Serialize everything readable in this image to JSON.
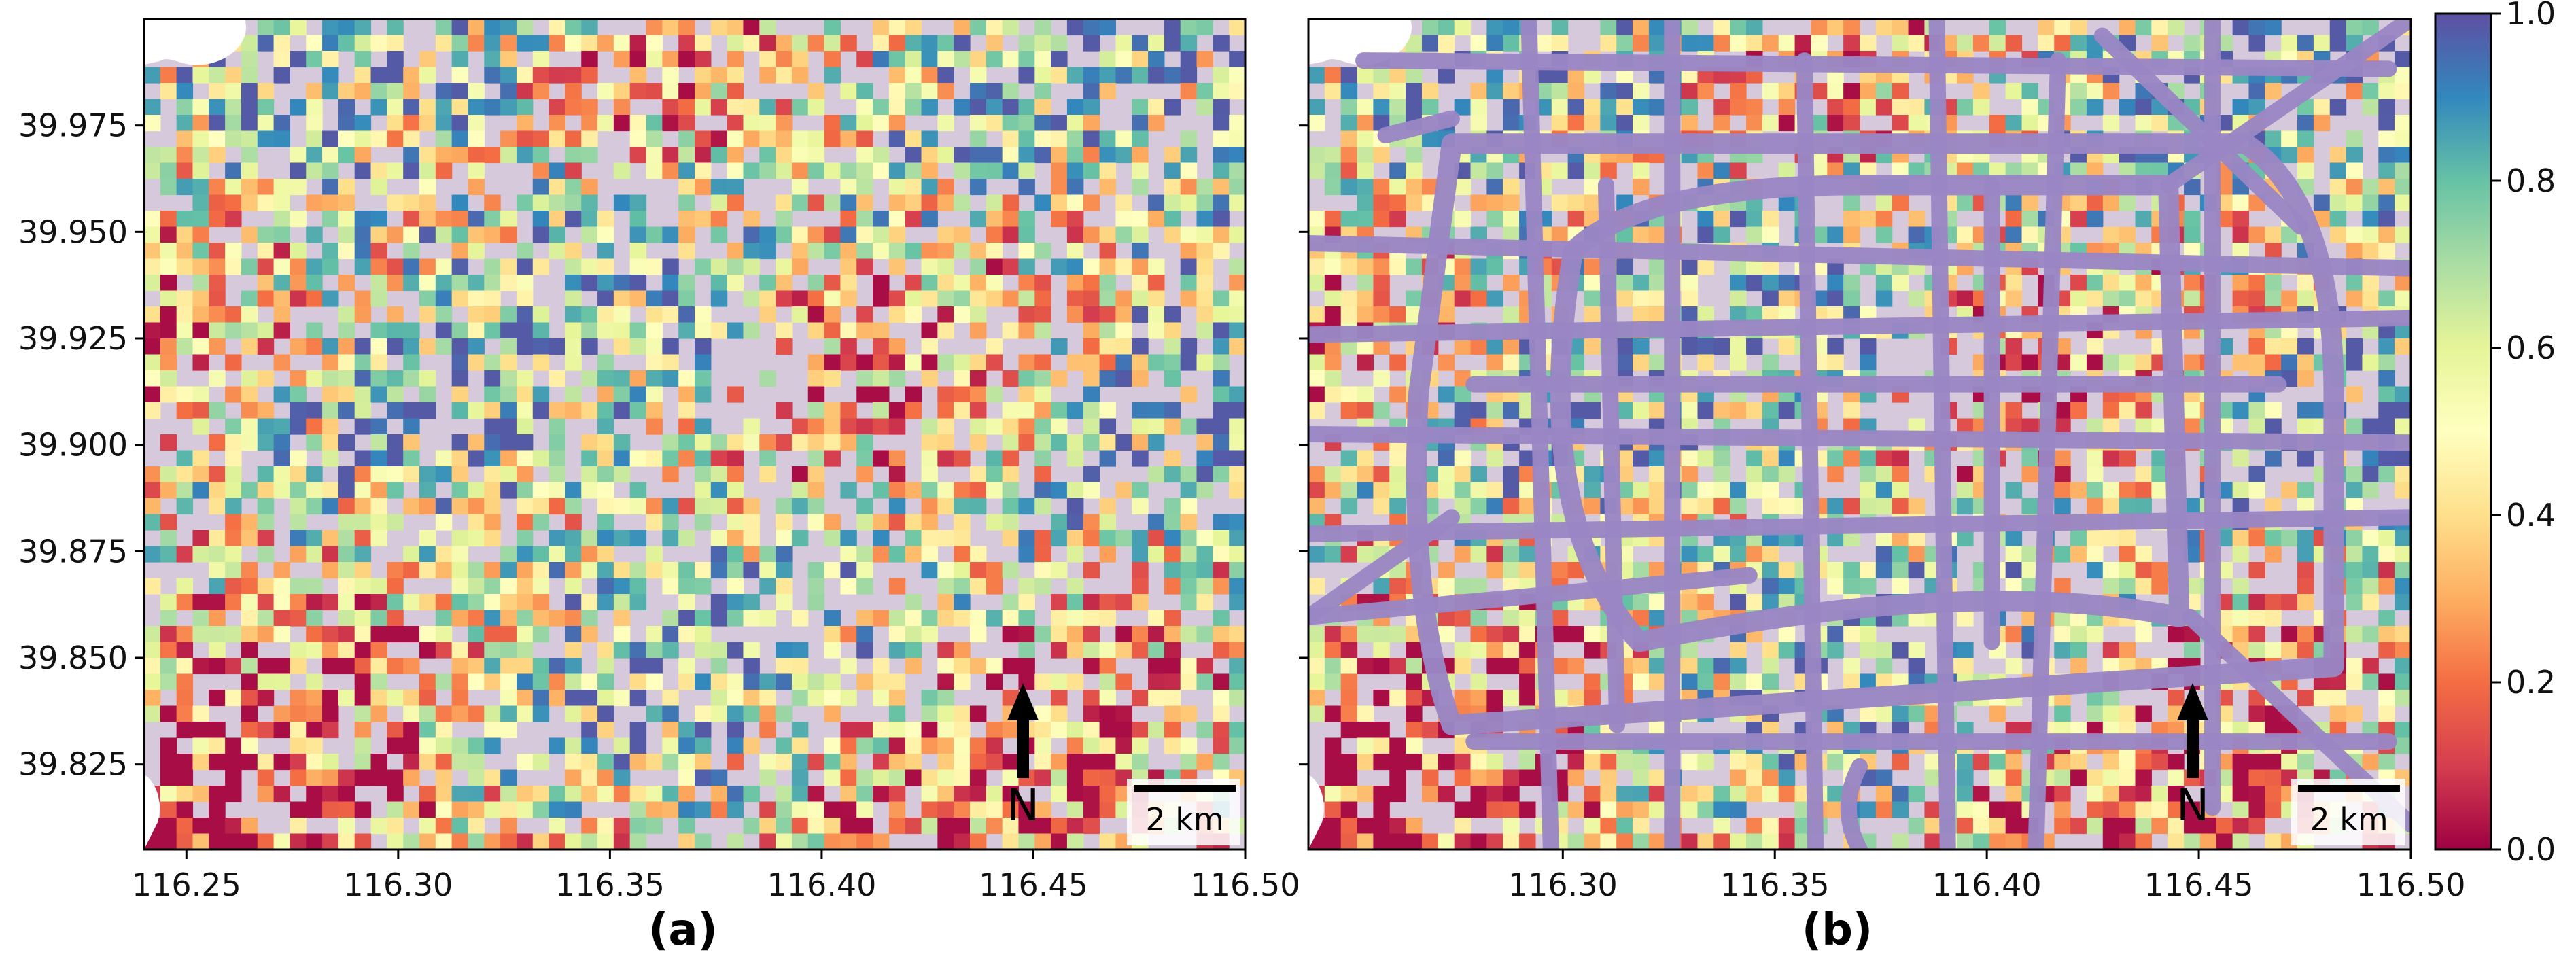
{
  "chart_data": [
    {
      "type": "heatmap",
      "panel_label": "(a)",
      "description_kind": "gridded map of Beijing city cells",
      "colormap": "Spectral",
      "value_range": [
        0.0,
        1.0
      ],
      "x_axis": {
        "range": [
          116.24,
          116.5
        ],
        "ticks": [
          116.25,
          116.3,
          116.35,
          116.4,
          116.45,
          116.5
        ],
        "tick_labels": [
          "116.25",
          "116.30",
          "116.35",
          "116.40",
          "116.45",
          "116.50"
        ]
      },
      "y_axis": {
        "range": [
          39.805,
          40.0
        ],
        "ticks": [
          39.825,
          39.85,
          39.875,
          39.9,
          39.925,
          39.95,
          39.975
        ],
        "tick_labels": [
          "39.825",
          "39.850",
          "39.875",
          "39.900",
          "39.925",
          "39.950",
          "39.975"
        ]
      },
      "background_color": "#d7c9dc",
      "north_arrow": {
        "label": "N"
      },
      "scale_bar": {
        "label": "2 km"
      },
      "roads_overlay": false
    },
    {
      "type": "heatmap",
      "panel_label": "(b)",
      "description_kind": "gridded map with road network overlay",
      "colormap": "Spectral",
      "value_range": [
        0.0,
        1.0
      ],
      "x_axis": {
        "range": [
          116.24,
          116.5
        ],
        "ticks": [
          116.3,
          116.35,
          116.4,
          116.45,
          116.5
        ],
        "tick_labels": [
          "116.30",
          "116.35",
          "116.40",
          "116.45",
          "116.50"
        ]
      },
      "y_axis": {
        "range": [
          39.805,
          40.0
        ],
        "ticks": [
          39.825,
          39.85,
          39.875,
          39.9,
          39.925,
          39.95,
          39.975
        ],
        "tick_labels": []
      },
      "background_color": "#d7c9dc",
      "road_color": "#9a86c4",
      "north_arrow": {
        "label": "N"
      },
      "scale_bar": {
        "label": "2 km"
      },
      "roads_overlay": true
    }
  ],
  "colorbar": {
    "ticks": [
      0.0,
      0.2,
      0.4,
      0.6,
      0.8,
      1.0
    ],
    "tick_labels": [
      "0.0",
      "0.2",
      "0.4",
      "0.6",
      "0.8",
      "1.0"
    ],
    "stops": [
      "#9e0142",
      "#d53e4f",
      "#f46d43",
      "#fdae61",
      "#fee08b",
      "#ffffbf",
      "#e6f598",
      "#abdda4",
      "#66c2a5",
      "#3288bd",
      "#5e4fa2"
    ]
  }
}
